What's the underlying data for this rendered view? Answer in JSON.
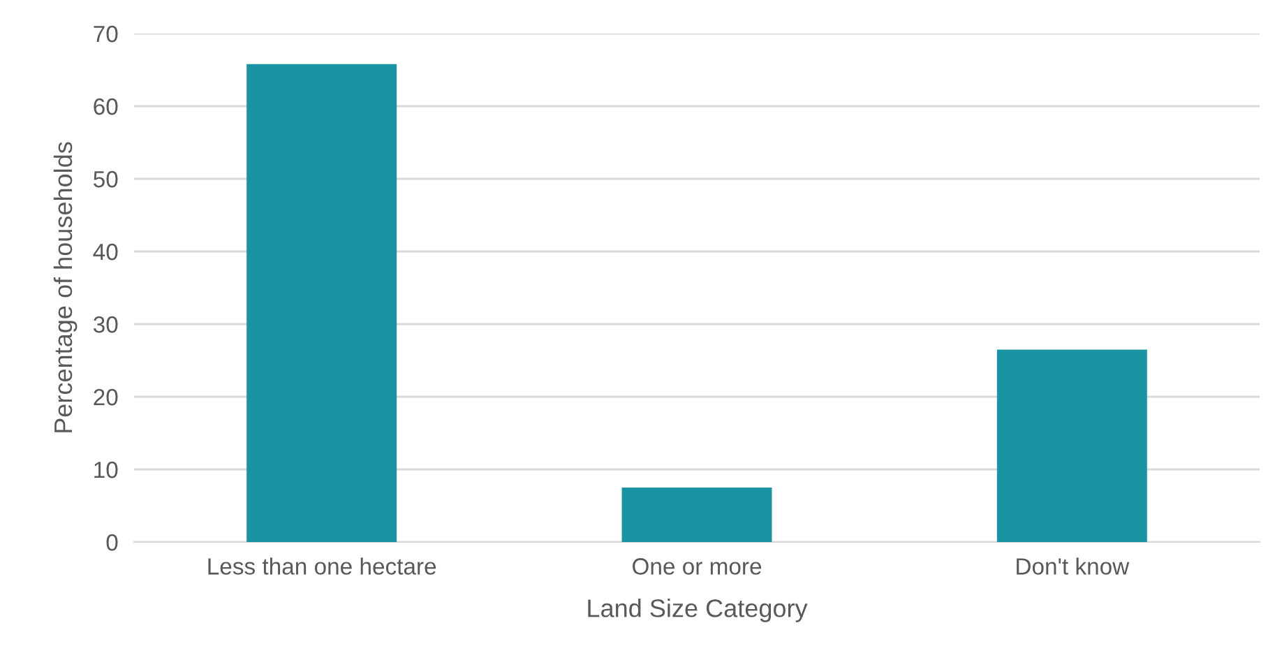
{
  "chart_data": {
    "type": "bar",
    "xlabel": "Land Size Category",
    "ylabel": "Percentage of households",
    "categories": [
      "Less than one hectare",
      "One or more",
      "Don't know"
    ],
    "values": [
      65.8,
      7.5,
      26.5
    ],
    "color": "#1a94a3",
    "ylim": [
      0,
      70
    ],
    "yticks": [
      0,
      10,
      20,
      30,
      40,
      50,
      60,
      70
    ],
    "grid": "y",
    "legend": false
  }
}
